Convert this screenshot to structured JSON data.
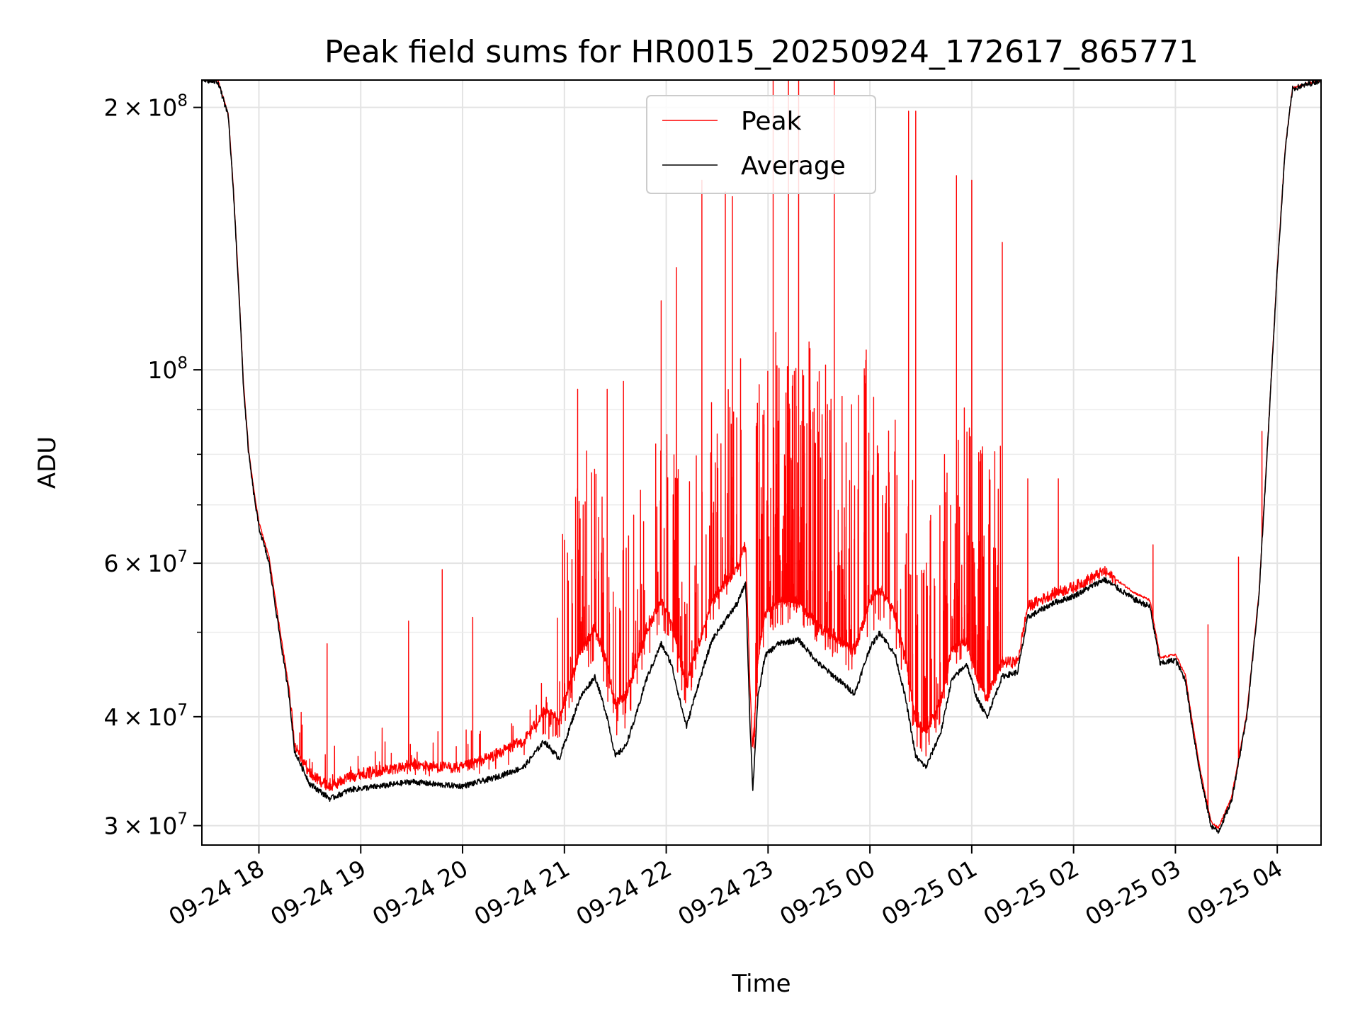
{
  "chart_data": {
    "type": "line",
    "title": "Peak field sums for HR0015_20250924_172617_865771",
    "xlabel": "Time",
    "ylabel": "ADU",
    "yscale": "log",
    "grid": true,
    "legend_position": "top-center",
    "xlim_hours": [
      17.44,
      28.43
    ],
    "ylim": [
      28500000,
      215000000
    ],
    "x_ticks": [
      {
        "hour": 18,
        "label": "09-24 18"
      },
      {
        "hour": 19,
        "label": "09-24 19"
      },
      {
        "hour": 20,
        "label": "09-24 20"
      },
      {
        "hour": 21,
        "label": "09-24 21"
      },
      {
        "hour": 22,
        "label": "09-24 22"
      },
      {
        "hour": 23,
        "label": "09-24 23"
      },
      {
        "hour": 24,
        "label": "09-25 00"
      },
      {
        "hour": 25,
        "label": "09-25 01"
      },
      {
        "hour": 26,
        "label": "09-25 02"
      },
      {
        "hour": 27,
        "label": "09-25 03"
      },
      {
        "hour": 28,
        "label": "09-25 04"
      }
    ],
    "y_ticks": [
      {
        "value": 30000000,
        "mantissa": "3",
        "exponent": "7"
      },
      {
        "value": 40000000,
        "mantissa": "4",
        "exponent": "7"
      },
      {
        "value": 60000000,
        "mantissa": "6",
        "exponent": "7"
      },
      {
        "value": 100000000,
        "mantissa": "",
        "exponent": "8"
      },
      {
        "value": 200000000,
        "mantissa": "2",
        "exponent": "8"
      }
    ],
    "y_minor_ticks": [
      50000000,
      70000000,
      80000000,
      90000000
    ],
    "times_symbol": "×",
    "base": "10",
    "series": [
      {
        "name": "Peak",
        "color": "#ff0000",
        "baseline_offset": [
          [
            17.44,
            1.0
          ],
          [
            18.3,
            1.02
          ],
          [
            19.0,
            1.04
          ],
          [
            20.0,
            1.05
          ],
          [
            20.8,
            1.08
          ],
          [
            21.0,
            1.12
          ],
          [
            21.5,
            1.15
          ],
          [
            22.0,
            1.12
          ],
          [
            22.7,
            1.1
          ],
          [
            23.0,
            1.12
          ],
          [
            23.5,
            1.1
          ],
          [
            24.0,
            1.13
          ],
          [
            24.8,
            1.08
          ],
          [
            25.4,
            1.03
          ],
          [
            28.43,
            1.0
          ]
        ],
        "spike_bands": [
          {
            "from": 18.35,
            "to": 20.9,
            "count": 90,
            "min": 1.02,
            "max": 1.18
          },
          {
            "from": 20.9,
            "to": 22.75,
            "count": 220,
            "min": 1.05,
            "max": 1.9
          },
          {
            "from": 22.85,
            "to": 24.0,
            "count": 230,
            "min": 1.05,
            "max": 2.3
          },
          {
            "from": 24.0,
            "to": 25.3,
            "count": 200,
            "min": 1.03,
            "max": 2.0
          }
        ],
        "spikes": [
          [
            18.67,
            48500000
          ],
          [
            19.47,
            51500000
          ],
          [
            19.8,
            59000000
          ],
          [
            20.1,
            52000000
          ],
          [
            21.13,
            95000000
          ],
          [
            21.42,
            95000000
          ],
          [
            21.58,
            97000000
          ],
          [
            21.95,
            120000000
          ],
          [
            22.1,
            131000000
          ],
          [
            22.35,
            165000000
          ],
          [
            22.58,
            160000000
          ],
          [
            22.65,
            158000000
          ],
          [
            23.05,
            215000000
          ],
          [
            23.2,
            215000000
          ],
          [
            23.3,
            215000000
          ],
          [
            23.65,
            215000000
          ],
          [
            24.38,
            198000000
          ],
          [
            24.45,
            198000000
          ],
          [
            24.85,
            167000000
          ],
          [
            25.0,
            165000000
          ],
          [
            25.3,
            140000000
          ],
          [
            25.55,
            75000000
          ],
          [
            25.85,
            75000000
          ],
          [
            26.78,
            63000000
          ],
          [
            27.32,
            51000000
          ],
          [
            27.62,
            61000000
          ],
          [
            27.85,
            85000000
          ]
        ]
      },
      {
        "name": "Average",
        "color": "#000000",
        "points": [
          [
            17.44,
            215000000
          ],
          [
            17.6,
            214000000
          ],
          [
            17.7,
            195000000
          ],
          [
            17.75,
            160000000
          ],
          [
            17.8,
            125000000
          ],
          [
            17.85,
            95000000
          ],
          [
            17.9,
            80000000
          ],
          [
            17.95,
            72000000
          ],
          [
            18.0,
            66000000
          ],
          [
            18.1,
            60000000
          ],
          [
            18.2,
            50000000
          ],
          [
            18.3,
            42000000
          ],
          [
            18.35,
            36500000
          ],
          [
            18.5,
            33500000
          ],
          [
            18.7,
            32200000
          ],
          [
            18.9,
            33000000
          ],
          [
            19.2,
            33300000
          ],
          [
            19.5,
            33700000
          ],
          [
            19.8,
            33400000
          ],
          [
            20.0,
            33300000
          ],
          [
            20.3,
            34000000
          ],
          [
            20.6,
            35000000
          ],
          [
            20.8,
            37500000
          ],
          [
            20.95,
            35800000
          ],
          [
            21.15,
            42000000
          ],
          [
            21.3,
            44500000
          ],
          [
            21.42,
            40000000
          ],
          [
            21.5,
            36000000
          ],
          [
            21.6,
            37000000
          ],
          [
            21.7,
            40000000
          ],
          [
            21.8,
            44000000
          ],
          [
            21.95,
            48500000
          ],
          [
            22.05,
            46000000
          ],
          [
            22.15,
            41000000
          ],
          [
            22.2,
            39000000
          ],
          [
            22.3,
            43000000
          ],
          [
            22.45,
            49000000
          ],
          [
            22.55,
            51000000
          ],
          [
            22.7,
            54000000
          ],
          [
            22.78,
            57000000
          ],
          [
            22.82,
            40000000
          ],
          [
            22.85,
            33000000
          ],
          [
            22.9,
            42000000
          ],
          [
            22.97,
            47000000
          ],
          [
            23.1,
            48500000
          ],
          [
            23.3,
            49000000
          ],
          [
            23.5,
            46000000
          ],
          [
            23.7,
            44000000
          ],
          [
            23.85,
            42500000
          ],
          [
            24.0,
            48000000
          ],
          [
            24.1,
            50000000
          ],
          [
            24.25,
            47000000
          ],
          [
            24.35,
            42000000
          ],
          [
            24.45,
            36000000
          ],
          [
            24.55,
            35000000
          ],
          [
            24.7,
            38500000
          ],
          [
            24.8,
            44000000
          ],
          [
            24.95,
            46000000
          ],
          [
            25.05,
            42000000
          ],
          [
            25.15,
            40000000
          ],
          [
            25.3,
            44500000
          ],
          [
            25.45,
            45000000
          ],
          [
            25.55,
            52000000
          ],
          [
            25.8,
            54000000
          ],
          [
            26.0,
            55000000
          ],
          [
            26.3,
            57500000
          ],
          [
            26.45,
            56000000
          ],
          [
            26.6,
            54500000
          ],
          [
            26.75,
            53500000
          ],
          [
            26.85,
            46000000
          ],
          [
            27.0,
            46500000
          ],
          [
            27.1,
            44000000
          ],
          [
            27.15,
            40000000
          ],
          [
            27.25,
            34000000
          ],
          [
            27.35,
            30000000
          ],
          [
            27.42,
            29500000
          ],
          [
            27.55,
            32000000
          ],
          [
            27.7,
            40000000
          ],
          [
            27.82,
            55000000
          ],
          [
            27.9,
            80000000
          ],
          [
            28.0,
            130000000
          ],
          [
            28.08,
            180000000
          ],
          [
            28.15,
            210000000
          ],
          [
            28.43,
            215000000
          ]
        ]
      }
    ]
  }
}
